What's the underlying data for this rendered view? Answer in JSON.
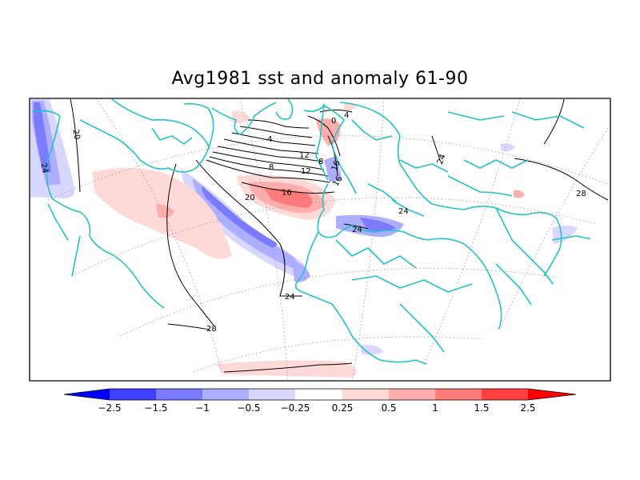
{
  "title": "Avg1981 sst and anomaly 61-90",
  "colors": {
    "strong_neg": "#4040ff",
    "neg": "#7b7bff",
    "weak_neg": "#aeaeff",
    "faint_neg": "#d8d8ff",
    "faint_pos": "#ffd8d8",
    "weak_pos": "#ffaeae",
    "pos": "#ff7b7b",
    "strong_pos": "#ff4040",
    "coast": "#22c4c4"
  },
  "contour_labels": [
    "24",
    "20",
    "4",
    "8",
    "12",
    "16",
    "20",
    "16",
    "0",
    "4",
    "8",
    "12",
    "16",
    "24",
    "28",
    "24",
    "24",
    "28",
    "24"
  ],
  "colorbar": {
    "labels": [
      "−2.5",
      "−1.5",
      "−1",
      "−0.5",
      "−0.25",
      "0.25",
      "0.5",
      "1",
      "1.5",
      "2.5"
    ]
  }
}
